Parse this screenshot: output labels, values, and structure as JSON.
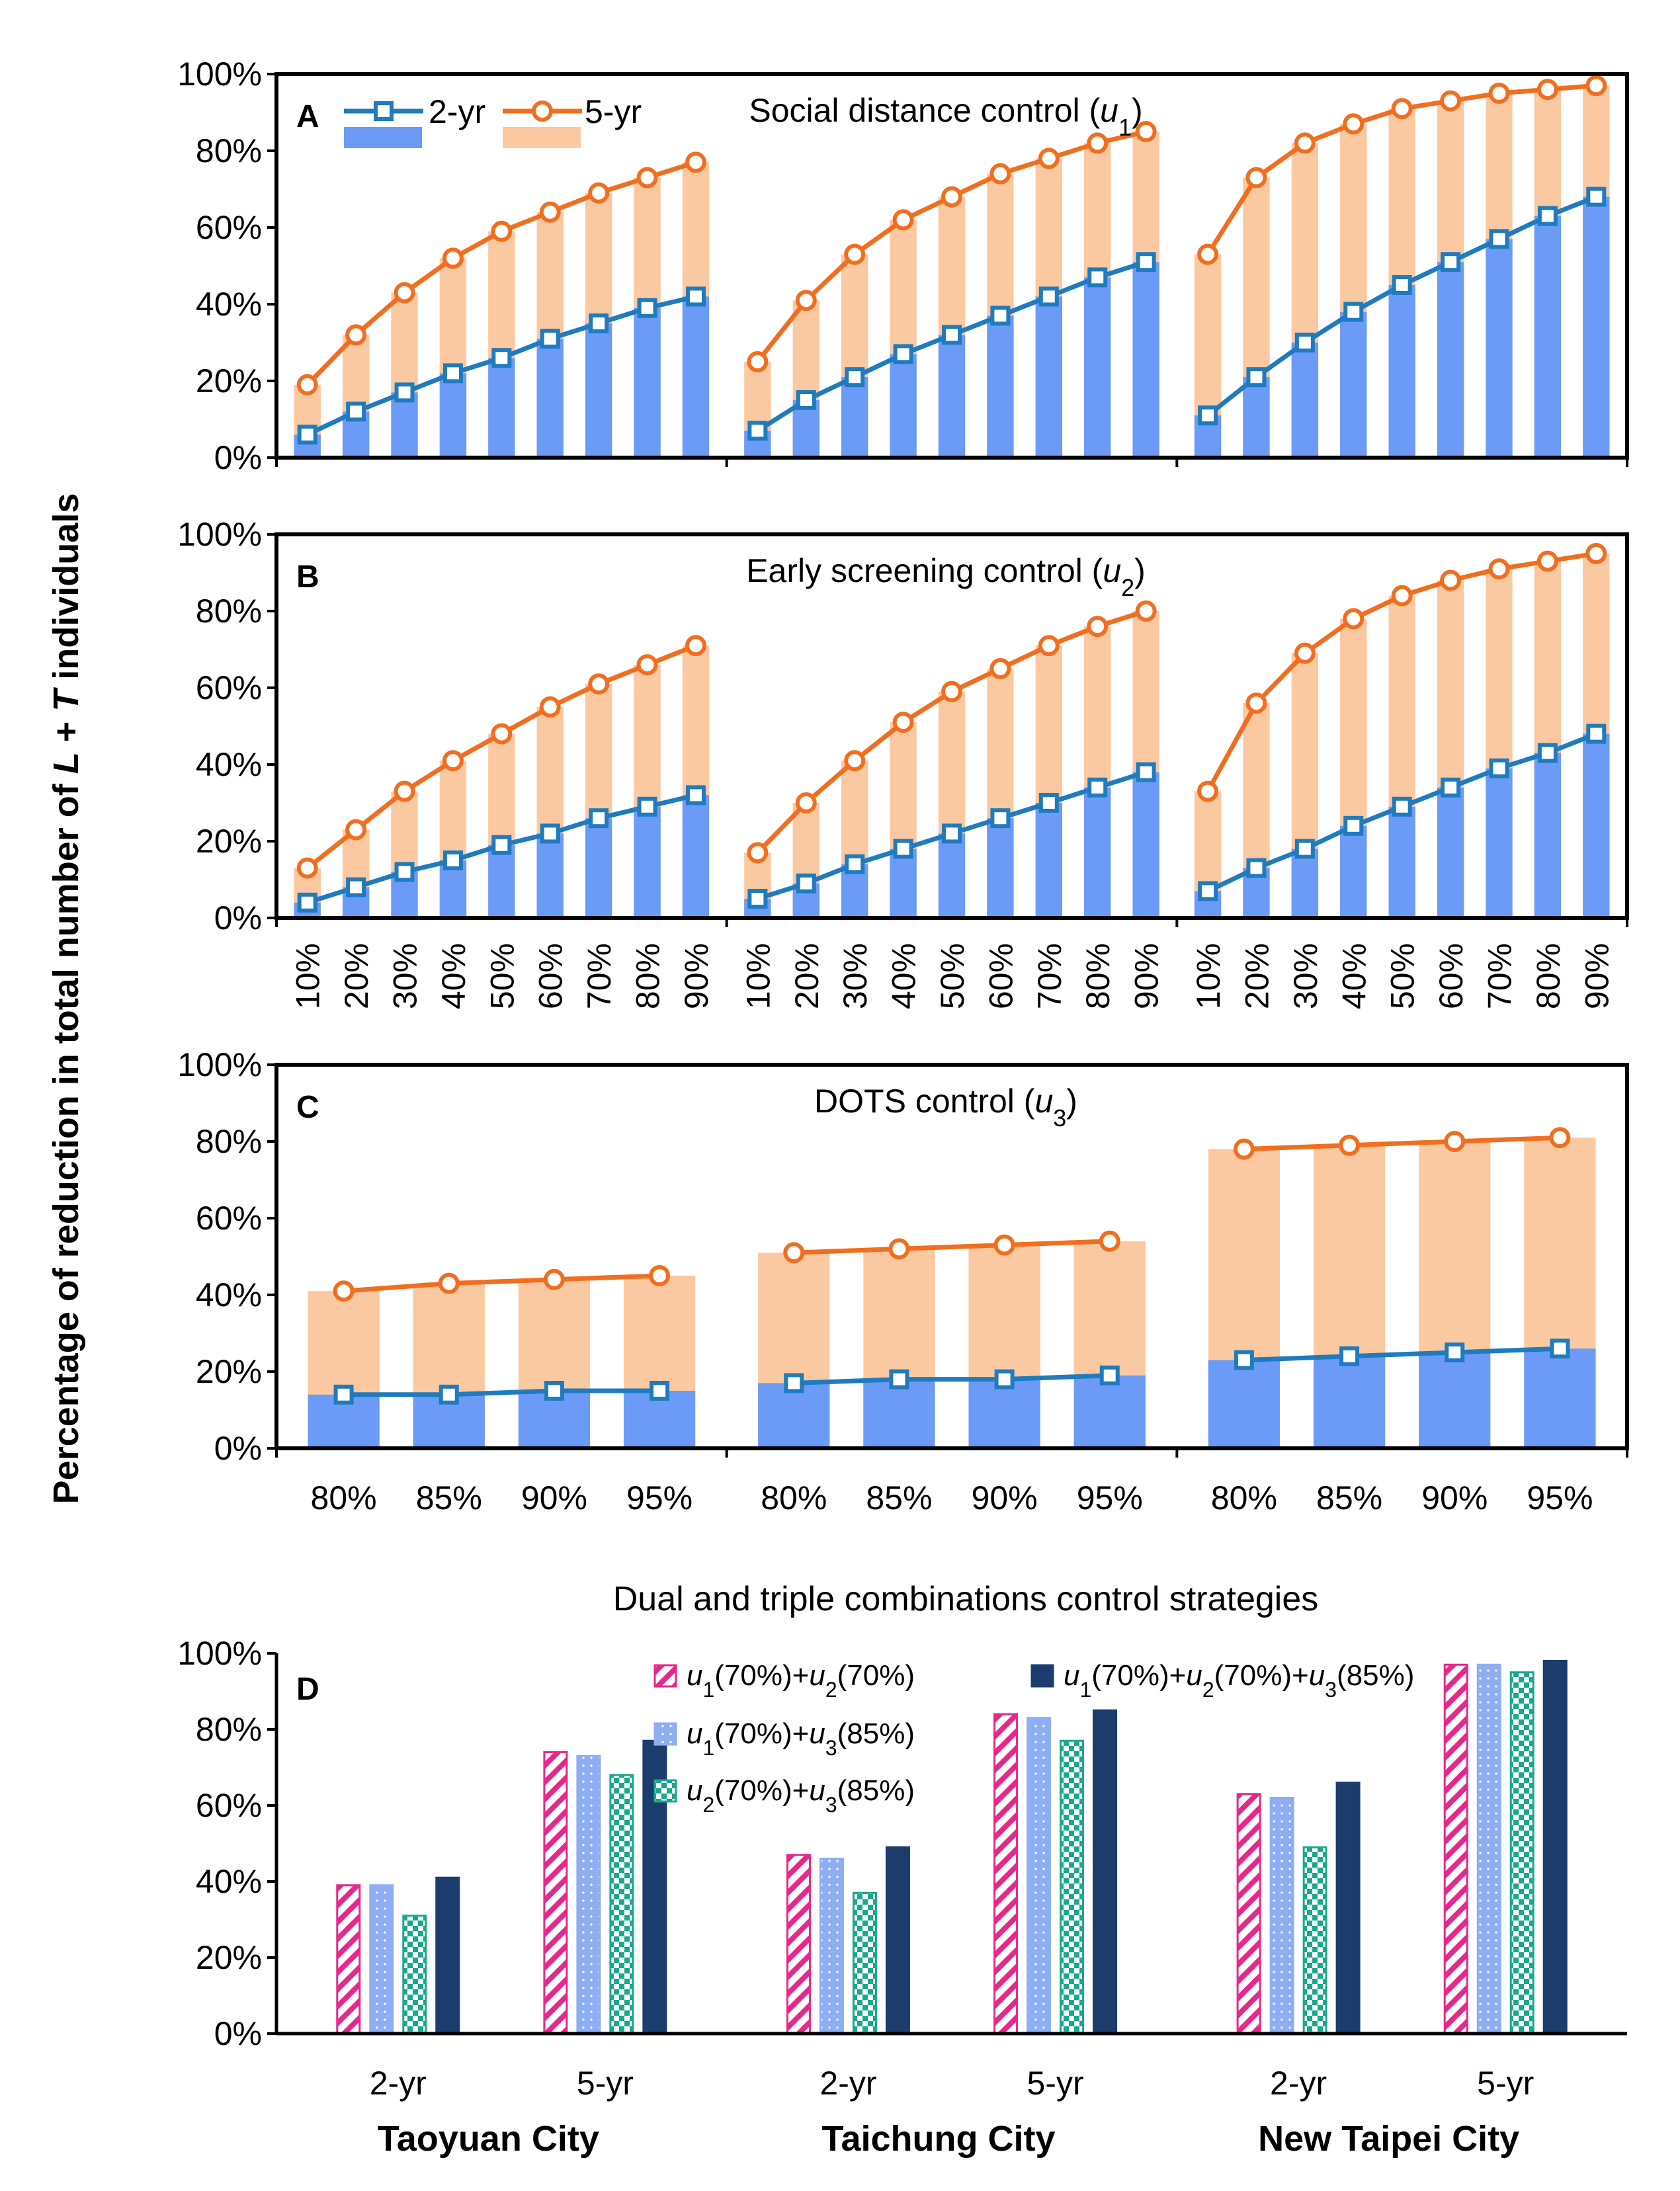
{
  "figure": {
    "ylabel": "Percentage of reduction in total number of L + T individuals",
    "yticks": [
      "0%",
      "20%",
      "40%",
      "60%",
      "80%",
      "100%"
    ],
    "cities": [
      "Taoyuan City",
      "Taichung City",
      "New Taipei City"
    ]
  },
  "colors": {
    "bar2": "#6B9BF7",
    "bar5": "#FBC9A1",
    "line2": "#1F7BBE",
    "line5": "#F26E1F",
    "magenta": "#E6288C",
    "lightblue": "#8FAEF2",
    "teal": "#18A88C",
    "navy": "#1D3C6E"
  },
  "chart_data": [
    {
      "id": "A",
      "type": "bar+line",
      "title": "Social distance control (u1)",
      "title_plain": "Social distance control (",
      "title_var": "u",
      "title_sub": "1",
      "legend": [
        "2-yr",
        "5-yr"
      ],
      "categories": [
        "10%",
        "20%",
        "30%",
        "40%",
        "50%",
        "60%",
        "70%",
        "80%",
        "90%"
      ],
      "ylim": [
        0,
        100
      ],
      "groups": [
        {
          "city": "Taoyuan City",
          "two_yr": [
            6,
            12,
            17,
            22,
            26,
            31,
            35,
            39,
            42
          ],
          "five_yr": [
            19,
            32,
            43,
            52,
            59,
            64,
            69,
            73,
            77
          ]
        },
        {
          "city": "Taichung City",
          "two_yr": [
            7,
            15,
            21,
            27,
            32,
            37,
            42,
            47,
            51
          ],
          "five_yr": [
            25,
            41,
            53,
            62,
            68,
            74,
            78,
            82,
            85
          ]
        },
        {
          "city": "New Taipei City",
          "two_yr": [
            11,
            21,
            30,
            38,
            45,
            51,
            57,
            63,
            68
          ],
          "five_yr": [
            53,
            73,
            82,
            87,
            91,
            93,
            95,
            96,
            97
          ]
        }
      ]
    },
    {
      "id": "B",
      "type": "bar+line",
      "title": "Early screening control (u2)",
      "title_plain": "Early screening control (",
      "title_var": "u",
      "title_sub": "2",
      "categories": [
        "10%",
        "20%",
        "30%",
        "40%",
        "50%",
        "60%",
        "70%",
        "80%",
        "90%"
      ],
      "ylim": [
        0,
        100
      ],
      "groups": [
        {
          "city": "Taoyuan City",
          "two_yr": [
            4,
            8,
            12,
            15,
            19,
            22,
            26,
            29,
            32
          ],
          "five_yr": [
            13,
            23,
            33,
            41,
            48,
            55,
            61,
            66,
            71
          ]
        },
        {
          "city": "Taichung City",
          "two_yr": [
            5,
            9,
            14,
            18,
            22,
            26,
            30,
            34,
            38
          ],
          "five_yr": [
            17,
            30,
            41,
            51,
            59,
            65,
            71,
            76,
            80
          ]
        },
        {
          "city": "New Taipei City",
          "two_yr": [
            7,
            13,
            18,
            24,
            29,
            34,
            39,
            43,
            48
          ],
          "five_yr": [
            33,
            56,
            69,
            78,
            84,
            88,
            91,
            93,
            95
          ]
        }
      ]
    },
    {
      "id": "C",
      "type": "bar+line",
      "title": "DOTS control (u3)",
      "title_plain": "DOTS control (",
      "title_var": "u",
      "title_sub": "3",
      "categories": [
        "80%",
        "85%",
        "90%",
        "95%"
      ],
      "ylim": [
        0,
        100
      ],
      "groups": [
        {
          "city": "Taoyuan City",
          "two_yr": [
            14,
            14,
            15,
            15
          ],
          "five_yr": [
            41,
            43,
            44,
            45
          ]
        },
        {
          "city": "Taichung City",
          "two_yr": [
            17,
            18,
            18,
            19
          ],
          "five_yr": [
            51,
            52,
            53,
            54
          ]
        },
        {
          "city": "New Taipei City",
          "two_yr": [
            23,
            24,
            25,
            26
          ],
          "five_yr": [
            78,
            79,
            80,
            81
          ]
        }
      ]
    },
    {
      "id": "D",
      "type": "bar",
      "title": "Dual and triple combinations control strategies",
      "categories": [
        "2-yr",
        "5-yr"
      ],
      "ylim": [
        0,
        100
      ],
      "series": [
        {
          "name": "u1(70%)+u2(70%)",
          "parts": [
            [
              "u",
              "1"
            ],
            [
              "(70%)+",
              ""
            ],
            [
              "u",
              "2"
            ],
            [
              "(70%)",
              ""
            ]
          ]
        },
        {
          "name": "u1(70%)+u3(85%)",
          "parts": [
            [
              "u",
              "1"
            ],
            [
              "(70%)+",
              ""
            ],
            [
              "u",
              "3"
            ],
            [
              "(85%)",
              ""
            ]
          ]
        },
        {
          "name": "u2(70%)+u3(85%)",
          "parts": [
            [
              "u",
              "2"
            ],
            [
              "(70%)+",
              ""
            ],
            [
              "u",
              "3"
            ],
            [
              "(85%)",
              ""
            ]
          ]
        },
        {
          "name": "u1(70%)+u2(70%)+u3(85%)",
          "parts": [
            [
              "u",
              "1"
            ],
            [
              "(70%)+",
              ""
            ],
            [
              "u",
              "2"
            ],
            [
              "(70%)+",
              ""
            ],
            [
              "u",
              "3"
            ],
            [
              "(85%)",
              ""
            ]
          ]
        }
      ],
      "groups": [
        {
          "city": "Taoyuan City",
          "two_yr": [
            39,
            39,
            31,
            41
          ],
          "five_yr": [
            74,
            73,
            68,
            77
          ]
        },
        {
          "city": "Taichung City",
          "two_yr": [
            47,
            46,
            37,
            49
          ],
          "five_yr": [
            84,
            83,
            77,
            85
          ]
        },
        {
          "city": "New Taipei City",
          "two_yr": [
            63,
            62,
            49,
            66
          ],
          "five_yr": [
            97,
            97,
            95,
            98
          ]
        }
      ]
    }
  ]
}
